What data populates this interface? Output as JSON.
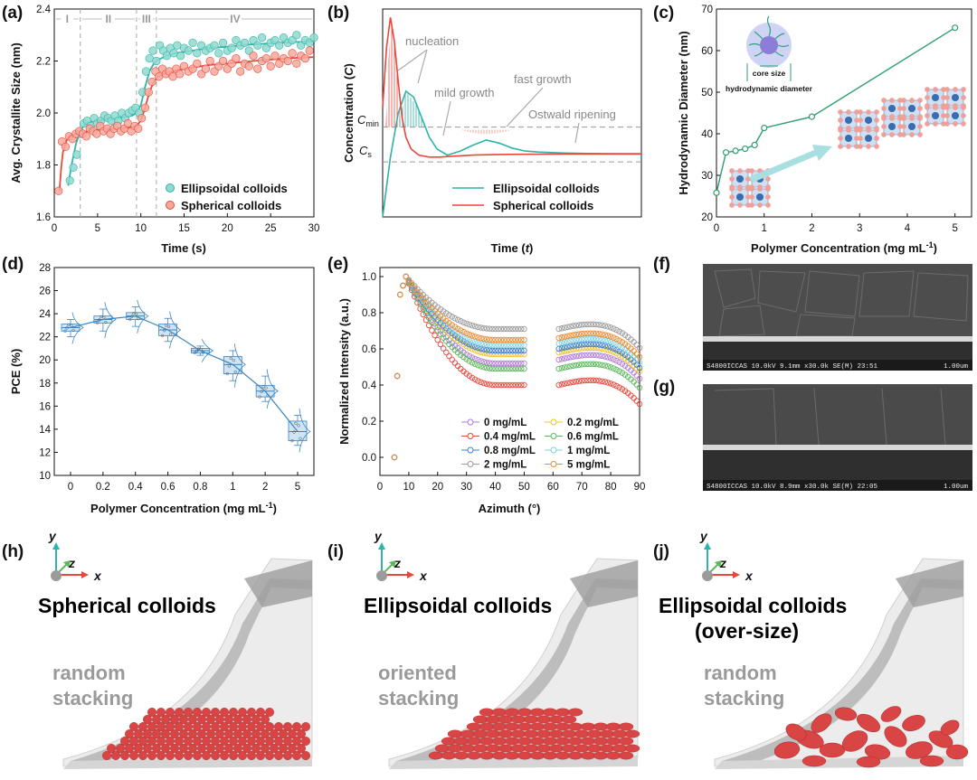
{
  "panels": {
    "a": "(a)",
    "b": "(b)",
    "c": "(c)",
    "d": "(d)",
    "e": "(e)",
    "f": "(f)",
    "g": "(g)",
    "h": "(h)",
    "i": "(i)",
    "j": "(j)"
  },
  "colors": {
    "teal": "#2eb3a8",
    "teal_fill": "#8fd9cf",
    "red": "#e8473c",
    "red_fill": "#f7a89b",
    "green": "#2e9e6e",
    "blue_box": "#3b85c4",
    "gray_dash": "#aaaaaa",
    "sem_dark": "#2a2a2a"
  },
  "chart_data": [
    {
      "id": "a",
      "type": "scatter",
      "xlabel": "Time (s)",
      "ylabel": "Avg. Crystallite Size (nm)",
      "xlim": [
        0,
        30
      ],
      "ylim": [
        1.6,
        2.4
      ],
      "xticks": [
        "0",
        "5",
        "10",
        "15",
        "20",
        "25",
        "30"
      ],
      "yticks": [
        "1.6",
        "1.8",
        "2.0",
        "2.2",
        "2.4"
      ],
      "regions": [
        "I",
        "II",
        "III",
        "IV"
      ],
      "region_bounds": [
        3,
        9.5,
        11.8
      ],
      "legend": [
        "Ellipsoidal colloids",
        "Spherical colloids"
      ],
      "series": [
        {
          "name": "Ellipsoidal colloids",
          "x": [
            1.8,
            2.2,
            2.6,
            3.0,
            3.4,
            3.8,
            4.2,
            4.6,
            5.0,
            5.4,
            5.8,
            6.2,
            6.6,
            7.0,
            7.4,
            7.8,
            8.2,
            8.6,
            9.0,
            9.4,
            9.8,
            10.2,
            10.6,
            11.0,
            11.4,
            11.8,
            12.2,
            12.6,
            13.0,
            13.4,
            13.8,
            14.2,
            14.6,
            15.0,
            15.5,
            16.0,
            16.5,
            17.0,
            17.5,
            18.0,
            18.5,
            19.0,
            19.5,
            20.0,
            20.5,
            21.0,
            21.5,
            22.0,
            22.5,
            23.0,
            23.5,
            24.0,
            24.5,
            25.0,
            25.5,
            26.0,
            26.5,
            27.0,
            27.5,
            28.0,
            28.5,
            29.0,
            29.5,
            30.0
          ],
          "y": [
            1.74,
            1.79,
            1.84,
            1.92,
            1.96,
            1.97,
            1.95,
            1.98,
            1.96,
            1.97,
            1.99,
            1.98,
            1.97,
            1.99,
            1.97,
            2.0,
            1.98,
            2.0,
            2.01,
            2.02,
            2.0,
            2.08,
            2.16,
            2.21,
            2.24,
            2.2,
            2.26,
            2.24,
            2.22,
            2.25,
            2.23,
            2.26,
            2.22,
            2.25,
            2.24,
            2.27,
            2.23,
            2.26,
            2.24,
            2.25,
            2.26,
            2.23,
            2.27,
            2.24,
            2.25,
            2.28,
            2.26,
            2.27,
            2.24,
            2.28,
            2.26,
            2.29,
            2.25,
            2.27,
            2.28,
            2.26,
            2.29,
            2.27,
            2.28,
            2.3,
            2.26,
            2.28,
            2.27,
            2.29
          ],
          "fit_x": [
            1.6,
            2,
            2.5,
            3,
            3.5,
            4,
            5,
            6,
            7,
            8,
            9,
            9.5,
            10,
            10.5,
            11,
            11.5,
            12,
            13,
            14,
            16,
            18,
            20,
            22,
            24,
            26,
            28,
            30
          ],
          "fit_y": [
            1.72,
            1.8,
            1.88,
            1.93,
            1.955,
            1.965,
            1.97,
            1.975,
            1.978,
            1.983,
            1.99,
            2.0,
            2.03,
            2.1,
            2.16,
            2.19,
            2.205,
            2.22,
            2.23,
            2.24,
            2.25,
            2.255,
            2.262,
            2.266,
            2.27,
            2.273,
            2.275
          ]
        },
        {
          "name": "Spherical colloids",
          "x": [
            0.5,
            0.9,
            1.3,
            1.7,
            2.1,
            2.5,
            2.9,
            3.3,
            3.7,
            4.1,
            4.5,
            4.9,
            5.3,
            5.7,
            6.1,
            6.5,
            6.9,
            7.3,
            7.7,
            8.1,
            8.5,
            8.9,
            9.3,
            9.7,
            10.1,
            10.5,
            10.9,
            11.3,
            11.7,
            12.1,
            12.5,
            12.9,
            13.3,
            13.7,
            14.1,
            14.5,
            15.0,
            15.5,
            16.0,
            16.5,
            17.0,
            17.5,
            18.0,
            18.5,
            19.0,
            19.5,
            20.0,
            20.5,
            21.0,
            21.5,
            22.0,
            22.5,
            23.0,
            23.5,
            24.0,
            24.5,
            25.0,
            25.5,
            26.0,
            26.5,
            27.0,
            27.5,
            28.0,
            28.5,
            29.0,
            29.5
          ],
          "y": [
            1.7,
            1.89,
            1.87,
            1.91,
            1.9,
            1.92,
            1.93,
            1.92,
            1.91,
            1.94,
            1.93,
            1.92,
            1.95,
            1.93,
            1.94,
            1.92,
            1.94,
            1.95,
            1.93,
            1.94,
            1.96,
            1.93,
            1.95,
            1.94,
            1.98,
            2.02,
            2.08,
            2.12,
            2.16,
            2.14,
            2.17,
            2.15,
            2.16,
            2.14,
            2.17,
            2.15,
            2.18,
            2.16,
            2.17,
            2.19,
            2.15,
            2.17,
            2.2,
            2.16,
            2.18,
            2.2,
            2.17,
            2.19,
            2.21,
            2.16,
            2.19,
            2.18,
            2.22,
            2.17,
            2.2,
            2.21,
            2.18,
            2.22,
            2.19,
            2.21,
            2.2,
            2.23,
            2.19,
            2.22,
            2.21,
            2.24
          ],
          "fit_x": [
            0.6,
            0.8,
            1.0,
            1.5,
            2,
            3,
            4,
            5,
            6,
            7,
            8,
            9,
            9.5,
            10,
            10.5,
            11,
            11.5,
            12,
            13,
            14,
            16,
            18,
            20,
            22,
            24,
            26,
            28,
            30
          ],
          "fit_y": [
            1.7,
            1.79,
            1.85,
            1.9,
            1.915,
            1.925,
            1.93,
            1.935,
            1.938,
            1.94,
            1.942,
            1.945,
            1.95,
            1.97,
            2.02,
            2.08,
            2.12,
            2.14,
            2.155,
            2.163,
            2.175,
            2.185,
            2.19,
            2.197,
            2.203,
            2.208,
            2.212,
            2.215
          ]
        }
      ]
    },
    {
      "id": "b",
      "type": "line",
      "xlabel": "Time (t)",
      "ylabel": "Concentration (C)",
      "ytick_labels": [
        "C_min",
        "C_s"
      ],
      "annotations": [
        "nucleation",
        "mild growth",
        "fast growth",
        "Ostwald ripening"
      ],
      "legend": [
        "Ellipsoidal colloids",
        "Spherical colloids"
      ],
      "series": [
        {
          "name": "Ellipsoidal colloids",
          "x": [
            0,
            0.03,
            0.06,
            0.09,
            0.12,
            0.15,
            0.18,
            0.21,
            0.25,
            0.3,
            0.35,
            0.4,
            0.45,
            0.5,
            0.55,
            0.6,
            0.7,
            0.8,
            0.9,
            1.0
          ],
          "y": [
            0,
            0.3,
            0.52,
            0.63,
            0.6,
            0.5,
            0.4,
            0.34,
            0.31,
            0.33,
            0.36,
            0.385,
            0.37,
            0.345,
            0.33,
            0.325,
            0.32,
            0.318,
            0.317,
            0.317
          ]
        },
        {
          "name": "Spherical colloids",
          "x": [
            0,
            0.015,
            0.03,
            0.045,
            0.06,
            0.075,
            0.09,
            0.11,
            0.14,
            0.18,
            0.22,
            0.28,
            0.35,
            0.45,
            0.55,
            0.7,
            0.85,
            1.0
          ],
          "y": [
            0.55,
            0.85,
            1.0,
            0.88,
            0.68,
            0.5,
            0.4,
            0.34,
            0.31,
            0.3,
            0.3,
            0.305,
            0.31,
            0.313,
            0.314,
            0.315,
            0.315,
            0.315
          ]
        }
      ]
    },
    {
      "id": "c",
      "type": "line",
      "xlabel": "Polymer Concentration (mg mL-1)",
      "ylabel": "Hydrodynamic Diameter (nm)",
      "xlim": [
        0,
        5
      ],
      "ylim": [
        20,
        70
      ],
      "xticks": [
        "0",
        "1",
        "2",
        "3",
        "4",
        "5"
      ],
      "yticks": [
        "20",
        "30",
        "40",
        "50",
        "60",
        "70"
      ],
      "x": [
        0,
        0.2,
        0.4,
        0.6,
        0.8,
        1,
        2,
        5
      ],
      "y": [
        25.8,
        35.5,
        35.9,
        36.4,
        37.3,
        41.4,
        44.1,
        65.5
      ],
      "inset_labels": [
        "core size",
        "hydrodynamic diameter"
      ]
    },
    {
      "id": "d",
      "type": "box",
      "xlabel": "Polymer Concentration (mg mL-1)",
      "ylabel": "PCE (%)",
      "ylim": [
        10,
        28
      ],
      "yticks": [
        "10",
        "12",
        "14",
        "16",
        "18",
        "20",
        "22",
        "24",
        "26",
        "28"
      ],
      "categories": [
        "0",
        "0.2",
        "0.4",
        "0.6",
        "0.8",
        "1",
        "2",
        "5"
      ],
      "medians": [
        22.8,
        23.5,
        23.8,
        22.6,
        20.8,
        19.6,
        17.3,
        13.8
      ],
      "q1": [
        22.5,
        23.2,
        23.5,
        22.1,
        20.6,
        18.8,
        16.8,
        13.0
      ],
      "q3": [
        23.1,
        23.8,
        24.1,
        23.1,
        21.0,
        20.3,
        17.8,
        14.7
      ],
      "whisker_low": [
        22.0,
        22.5,
        22.9,
        21.6,
        20.4,
        18.2,
        16.4,
        12.6
      ],
      "whisker_high": [
        23.5,
        24.4,
        24.6,
        23.6,
        21.2,
        20.8,
        18.6,
        15.2
      ],
      "trend": [
        22.8,
        23.5,
        23.8,
        22.6,
        20.8,
        19.6,
        17.3,
        13.8
      ]
    },
    {
      "id": "e",
      "type": "scatter",
      "xlabel": "Azimuth (°)",
      "ylabel": "Normalized Intensity (a.u.)",
      "xlim": [
        0,
        90
      ],
      "ylim": [
        -0.1,
        1.05
      ],
      "xticks": [
        "0",
        "10",
        "20",
        "30",
        "40",
        "50",
        "60",
        "70",
        "80",
        "90"
      ],
      "yticks": [
        "0.0",
        "0.2",
        "0.4",
        "0.6",
        "0.8",
        "1.0"
      ],
      "gap": [
        50,
        62
      ],
      "legend": [
        {
          "label": "0    mg/mL",
          "color": "#b27ad9"
        },
        {
          "label": "0.2 mg/mL",
          "color": "#f2c230"
        },
        {
          "label": "0.4 mg/mL",
          "color": "#e8473c"
        },
        {
          "label": "0.6 mg/mL",
          "color": "#5cb85c"
        },
        {
          "label": "0.8 mg/mL",
          "color": "#3a7fd5"
        },
        {
          "label": "1    mg/mL",
          "color": "#7fd1e0"
        },
        {
          "label": "2    mg/mL",
          "color": "#9a9a9a"
        },
        {
          "label": "5    mg/mL",
          "color": "#f08a30"
        }
      ],
      "plateaus": [
        {
          "name": "0",
          "color": "#b27ad9",
          "plateau": 0.52,
          "edge": 0.54
        },
        {
          "name": "0.2",
          "color": "#f2c230",
          "plateau": 0.57,
          "edge": 0.58
        },
        {
          "name": "0.4",
          "color": "#e8473c",
          "plateau": 0.4,
          "edge": 0.4
        },
        {
          "name": "0.6",
          "color": "#5cb85c",
          "plateau": 0.49,
          "edge": 0.49
        },
        {
          "name": "0.8",
          "color": "#3a7fd5",
          "plateau": 0.59,
          "edge": 0.6
        },
        {
          "name": "1",
          "color": "#7fd1e0",
          "plateau": 0.62,
          "edge": 0.63
        },
        {
          "name": "2",
          "color": "#9a9a9a",
          "plateau": 0.71,
          "edge": 0.71
        },
        {
          "name": "5",
          "color": "#f08a30",
          "plateau": 0.65,
          "edge": 0.66
        }
      ]
    }
  ],
  "sem": {
    "f_caption": "S4800ICCAS 10.0kV 9.1mm x30.0k SE(M) 23:51",
    "f_scale": "1.00um",
    "g_caption": "S4800ICCAS 10.0kV 8.9mm x30.0k SE(M) 22:05",
    "g_scale": "1.00um"
  },
  "schemes": [
    {
      "title": "Spherical colloids",
      "subtitle": "",
      "stack_line1": "random",
      "stack_line2": "stacking"
    },
    {
      "title": "Ellipsoidal colloids",
      "subtitle": "",
      "stack_line1": "oriented",
      "stack_line2": "stacking"
    },
    {
      "title": "Ellipsoidal colloids",
      "subtitle": "(over-size)",
      "stack_line1": "random",
      "stack_line2": "stacking"
    }
  ],
  "axes_labels": {
    "y": "y",
    "z": "z",
    "x": "x"
  }
}
